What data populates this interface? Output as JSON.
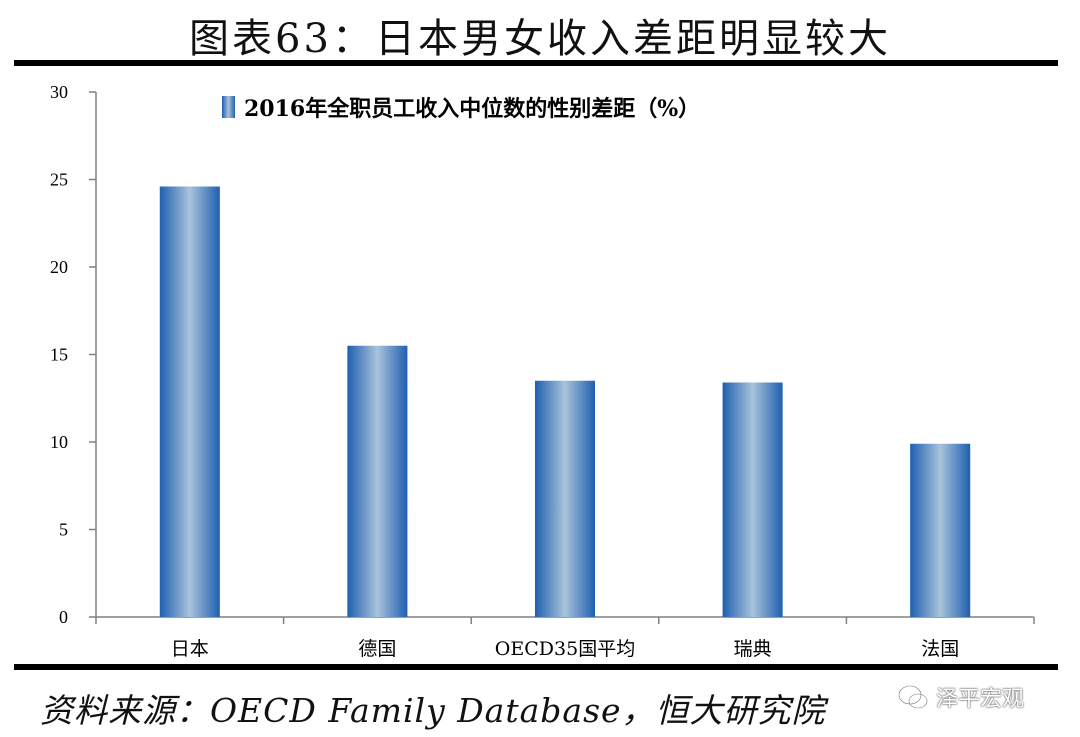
{
  "header": {
    "title": "图表63：日本男女收入差距明显较大"
  },
  "footer": {
    "source": "资料来源：OECD Family Database，恒大研究院"
  },
  "watermark": {
    "text": "泽平宏观",
    "icon": "wechat-icon"
  },
  "colors": {
    "bar_edge": "#1f5fb0",
    "bar_center": "#a9c3db",
    "axis": "#808080"
  },
  "chart_data": {
    "type": "bar",
    "categories": [
      "日本",
      "德国",
      "OECD35国平均",
      "瑞典",
      "法国"
    ],
    "series": [
      {
        "name": "2016年全职员工收入中位数的性别差距（%）",
        "values": [
          24.6,
          15.5,
          13.5,
          13.4,
          9.9
        ]
      }
    ],
    "ylim": [
      0,
      30
    ],
    "yticks": [
      0,
      5,
      10,
      15,
      20,
      25,
      30
    ],
    "grid": false,
    "legend": "top-center"
  }
}
